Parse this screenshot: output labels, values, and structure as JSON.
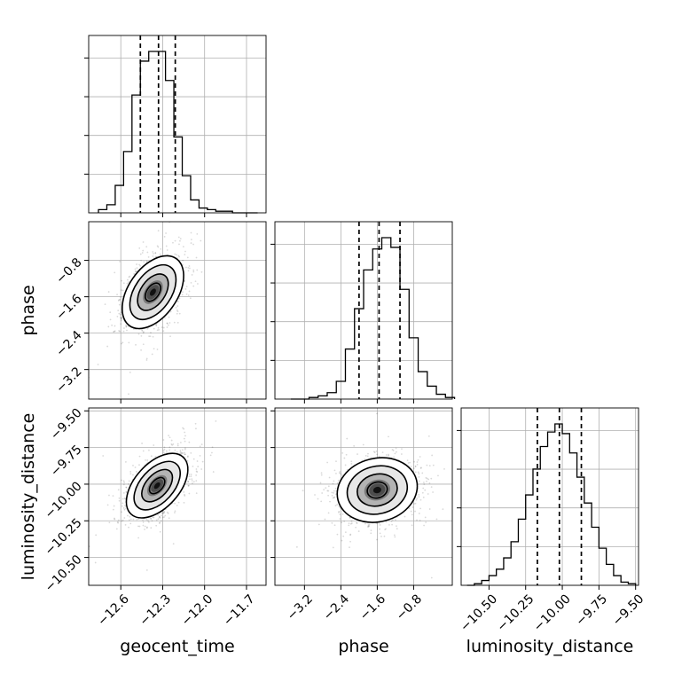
{
  "chart_data": {
    "type": "corner",
    "parameters": [
      "geocent_time",
      "phase",
      "luminosity_distance"
    ],
    "axis_labels": [
      "geocent_time",
      "phase",
      "luminosity_distance"
    ],
    "ranges": {
      "geocent_time": [
        -12.83,
        -11.56
      ],
      "phase": [
        -3.85,
        0.05
      ],
      "luminosity_distance": [
        -10.69,
        -9.48
      ]
    },
    "ticks": {
      "geocent_time": {
        "values": [
          -12.6,
          -12.3,
          -12.0,
          -11.7
        ],
        "labels": [
          "−12.6",
          "−12.3",
          "−12.0",
          "−11.7"
        ]
      },
      "phase": {
        "values": [
          -3.2,
          -2.4,
          -1.6,
          -0.8
        ],
        "labels": [
          "−3.2",
          "−2.4",
          "−1.6",
          "−0.8"
        ]
      },
      "luminosity_distance": {
        "values": [
          -10.5,
          -10.25,
          -10.0,
          -9.75,
          -9.5
        ],
        "labels": [
          "−10.50",
          "−10.25",
          "−10.00",
          "−9.75",
          "−9.50"
        ]
      }
    },
    "quantiles": {
      "geocent_time": [
        -12.46,
        -12.33,
        -12.21
      ],
      "phase": [
        -2.0,
        -1.56,
        -1.1
      ],
      "luminosity_distance": [
        -10.17,
        -10.02,
        -9.87
      ]
    },
    "histograms": {
      "geocent_time": {
        "edges": [
          -12.76,
          -12.7,
          -12.64,
          -12.58,
          -12.52,
          -12.46,
          -12.4,
          -12.34,
          -12.28,
          -12.22,
          -12.16,
          -12.1,
          -12.04,
          -11.98,
          -11.92,
          -11.86,
          -11.8,
          -11.74,
          -11.68,
          -11.62
        ],
        "counts": [
          0.02,
          0.05,
          0.17,
          0.38,
          0.73,
          0.94,
          1.0,
          1.0,
          0.82,
          0.47,
          0.23,
          0.08,
          0.03,
          0.02,
          0.01,
          0.01,
          0.0,
          0.0,
          0.0
        ]
      },
      "phase": {
        "edges": [
          -3.5,
          -3.3,
          -3.1,
          -2.9,
          -2.7,
          -2.5,
          -2.3,
          -2.1,
          -1.9,
          -1.7,
          -1.5,
          -1.3,
          -1.1,
          -0.9,
          -0.7,
          -0.5,
          -0.3,
          -0.1,
          0.1
        ],
        "counts": [
          0.0,
          0.0,
          0.01,
          0.02,
          0.04,
          0.11,
          0.31,
          0.56,
          0.8,
          0.93,
          1.0,
          0.94,
          0.68,
          0.38,
          0.17,
          0.08,
          0.03,
          0.01
        ]
      },
      "luminosity_distance": {
        "edges": [
          -10.65,
          -10.6,
          -10.55,
          -10.5,
          -10.45,
          -10.4,
          -10.35,
          -10.3,
          -10.25,
          -10.2,
          -10.15,
          -10.1,
          -10.05,
          -10.0,
          -9.95,
          -9.9,
          -9.85,
          -9.8,
          -9.75,
          -9.7,
          -9.65,
          -9.6,
          -9.55,
          -9.5
        ],
        "counts": [
          0.0,
          0.01,
          0.03,
          0.06,
          0.1,
          0.17,
          0.27,
          0.41,
          0.56,
          0.72,
          0.86,
          0.95,
          1.0,
          0.94,
          0.82,
          0.67,
          0.51,
          0.36,
          0.23,
          0.13,
          0.06,
          0.02,
          0.01
        ]
      }
    },
    "pairs": [
      {
        "x": "geocent_time",
        "y": "phase",
        "mean": [
          -12.37,
          -1.5
        ],
        "sd": [
          0.11,
          0.4
        ],
        "corr": 0.45
      },
      {
        "x": "geocent_time",
        "y": "luminosity_distance",
        "mean": [
          -12.34,
          -10.01
        ],
        "sd": [
          0.11,
          0.11
        ],
        "corr": 0.5
      },
      {
        "x": "phase",
        "y": "luminosity_distance",
        "mean": [
          -1.6,
          -10.04
        ],
        "sd": [
          0.44,
          0.11
        ],
        "corr": 0.12
      }
    ],
    "contour_levels_sigma": [
      0.5,
      1.0,
      1.5,
      2.0
    ],
    "grid": true
  }
}
